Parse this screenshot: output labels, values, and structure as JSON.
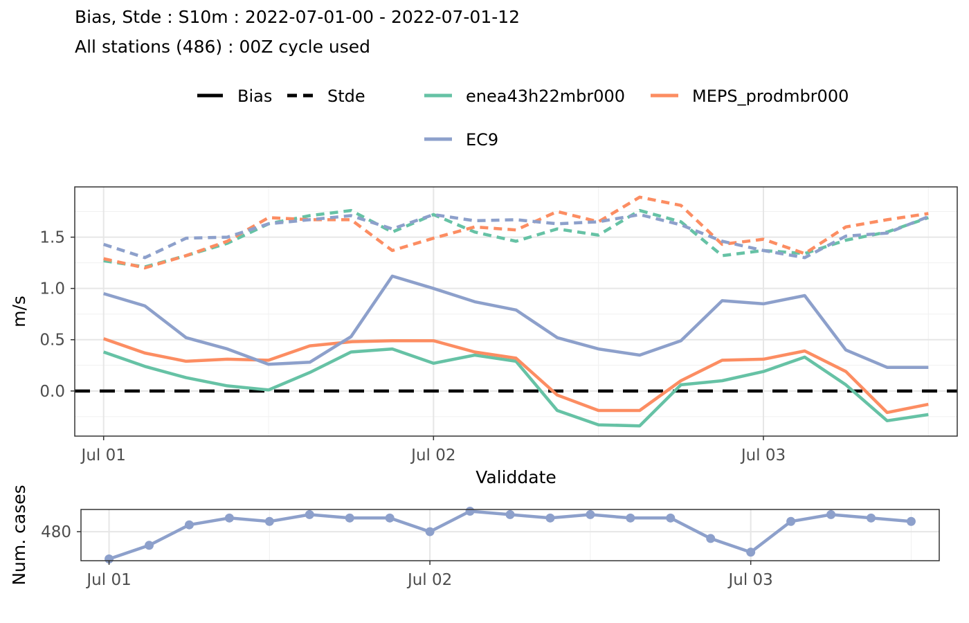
{
  "title_lines": [
    "Bias, Stde : S10m : 2022-07-01-00 - 2022-07-01-12",
    "All stations (486) : 00Z cycle used"
  ],
  "legend": {
    "linetype": [
      {
        "label": "Bias",
        "dash": "solid"
      },
      {
        "label": "Stde",
        "dash": "dashed"
      }
    ],
    "models": [
      {
        "label": "enea43h22mbr000",
        "color": "#66C2A5"
      },
      {
        "label": "MEPS_prodmbr000",
        "color": "#FC8D62"
      },
      {
        "label": "EC9",
        "color": "#8DA0CB"
      }
    ]
  },
  "chart_data": [
    {
      "type": "line",
      "xlabel": "Validdate",
      "ylabel": "m/s",
      "x_ticks": [
        "Jul 01",
        "Jul 02",
        "Jul 03"
      ],
      "y_ticks": [
        "0.0",
        "0.5",
        "1.0",
        "1.5"
      ],
      "x_hours": [
        0,
        3,
        6,
        9,
        12,
        15,
        18,
        21,
        24,
        27,
        30,
        33,
        36,
        39,
        42,
        45,
        48,
        51,
        54,
        57,
        60
      ],
      "ylim": [
        -0.44,
        1.99
      ],
      "grid": true,
      "reference_line": {
        "y": 0,
        "style": "dashed",
        "color": "#000000"
      },
      "series": [
        {
          "name": "enea43h22mbr000",
          "metric": "Bias",
          "color": "#66C2A5",
          "values": [
            0.38,
            0.24,
            0.13,
            0.05,
            0.01,
            0.18,
            0.38,
            0.41,
            0.27,
            0.35,
            0.29,
            -0.19,
            -0.33,
            -0.34,
            0.06,
            0.1,
            0.19,
            0.33,
            0.06,
            -0.29,
            -0.23
          ]
        },
        {
          "name": "MEPS_prodmbr000",
          "metric": "Bias",
          "color": "#FC8D62",
          "values": [
            0.51,
            0.37,
            0.29,
            0.31,
            0.3,
            0.44,
            0.48,
            0.49,
            0.49,
            0.38,
            0.32,
            -0.04,
            -0.19,
            -0.19,
            0.1,
            0.3,
            0.31,
            0.39,
            0.19,
            -0.21,
            -0.13
          ]
        },
        {
          "name": "EC9",
          "metric": "Bias",
          "color": "#8DA0CB",
          "values": [
            0.95,
            0.83,
            0.52,
            0.41,
            0.26,
            0.28,
            0.53,
            1.12,
            1.0,
            0.87,
            0.79,
            0.52,
            0.41,
            0.35,
            0.49,
            0.88,
            0.85,
            0.93,
            0.4,
            0.23,
            0.23
          ]
        },
        {
          "name": "enea43h22mbr000",
          "metric": "Stde",
          "color": "#66C2A5",
          "values": [
            1.27,
            1.21,
            1.32,
            1.44,
            1.63,
            1.71,
            1.76,
            1.55,
            1.72,
            1.55,
            1.46,
            1.58,
            1.52,
            1.76,
            1.65,
            1.32,
            1.37,
            1.34,
            1.47,
            1.55,
            1.69
          ]
        },
        {
          "name": "MEPS_prodmbr000",
          "metric": "Stde",
          "color": "#FC8D62",
          "values": [
            1.29,
            1.2,
            1.32,
            1.46,
            1.69,
            1.67,
            1.67,
            1.37,
            1.49,
            1.6,
            1.57,
            1.75,
            1.65,
            1.89,
            1.81,
            1.43,
            1.48,
            1.34,
            1.6,
            1.67,
            1.73
          ]
        },
        {
          "name": "EC9",
          "metric": "Stde",
          "color": "#8DA0CB",
          "values": [
            1.43,
            1.3,
            1.49,
            1.5,
            1.63,
            1.67,
            1.71,
            1.58,
            1.72,
            1.66,
            1.67,
            1.63,
            1.65,
            1.72,
            1.62,
            1.46,
            1.37,
            1.3,
            1.51,
            1.54,
            1.7
          ]
        }
      ]
    },
    {
      "type": "line",
      "ylabel": "Num. cases",
      "x_ticks": [
        "Jul 01",
        "Jul 02",
        "Jul 03"
      ],
      "y_ticks": [
        "480"
      ],
      "x_hours": [
        0,
        3,
        6,
        9,
        12,
        15,
        18,
        21,
        24,
        27,
        30,
        33,
        36,
        39,
        42,
        45,
        48,
        51,
        54,
        57,
        60
      ],
      "ylim": [
        471.5,
        486.5
      ],
      "grid": true,
      "markers": true,
      "series": [
        {
          "name": "EC9",
          "color": "#8DA0CB",
          "values": [
            472,
            476,
            482,
            484,
            483,
            485,
            484,
            484,
            480,
            486,
            485,
            484,
            485,
            484,
            484,
            478,
            474,
            483,
            485,
            484,
            483
          ]
        }
      ]
    }
  ]
}
